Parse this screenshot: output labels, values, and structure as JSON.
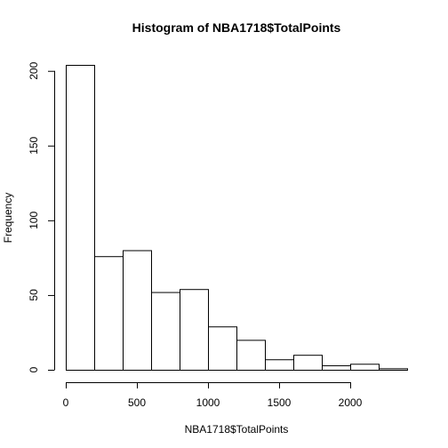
{
  "chart_data": {
    "type": "bar",
    "title": "Histogram of NBA1718$TotalPoints",
    "xlabel": "NBA1718$TotalPoints",
    "ylabel": "Frequency",
    "bin_edges": [
      0,
      200,
      400,
      600,
      800,
      1000,
      1200,
      1400,
      1600,
      1800,
      2000,
      2200,
      2400
    ],
    "values": [
      204,
      76,
      80,
      52,
      54,
      29,
      20,
      7,
      10,
      3,
      4,
      1
    ],
    "x_ticks": [
      "0",
      "500",
      "1000",
      "1500",
      "2000"
    ],
    "y_ticks": [
      "0",
      "50",
      "100",
      "150",
      "200"
    ],
    "xlim": [
      0,
      2400
    ],
    "ylim": [
      0,
      204
    ],
    "bar_fill": "#ffffff",
    "bar_stroke": "#000000",
    "grid": false
  }
}
